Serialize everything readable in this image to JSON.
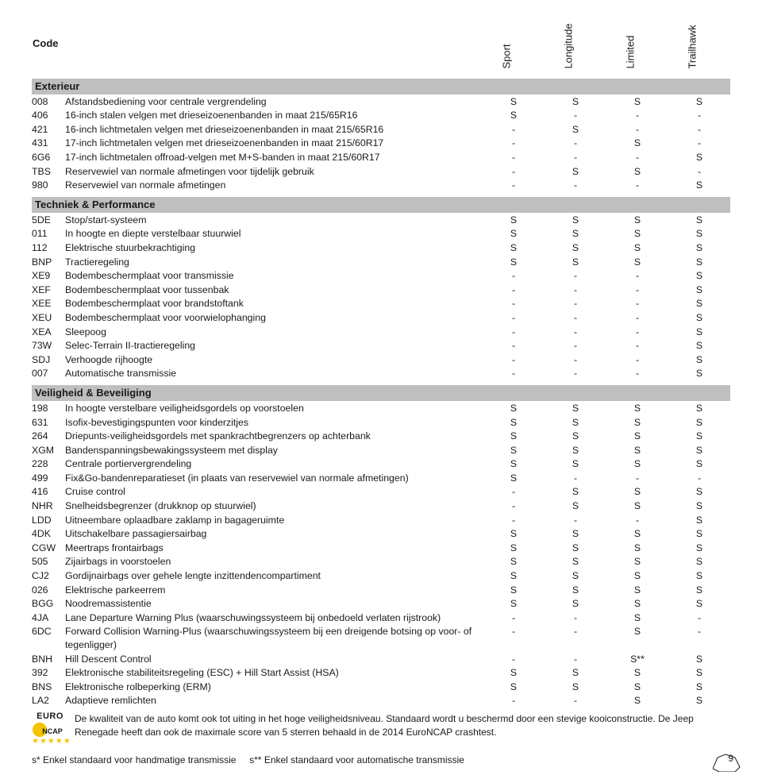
{
  "header": {
    "code_label": "Code",
    "trims": [
      "Sport",
      "Longitude",
      "Limited",
      "Trailhawk"
    ]
  },
  "sections": [
    {
      "title": "Exterieur",
      "rows": [
        {
          "code": "008",
          "desc": "Afstandsbediening voor centrale vergrendeling",
          "v": [
            "S",
            "S",
            "S",
            "S"
          ]
        },
        {
          "code": "406",
          "desc": "16-inch stalen velgen met drieseizoenenbanden in maat 215/65R16",
          "v": [
            "S",
            "-",
            "-",
            "-"
          ]
        },
        {
          "code": "421",
          "desc": "16-inch lichtmetalen velgen met drieseizoenenbanden in maat 215/65R16",
          "v": [
            "-",
            "S",
            "-",
            "-"
          ]
        },
        {
          "code": "431",
          "desc": "17-inch lichtmetalen velgen met drieseizoenenbanden in maat 215/60R17",
          "v": [
            "-",
            "-",
            "S",
            "-"
          ]
        },
        {
          "code": "6G6",
          "desc": "17-inch lichtmetalen offroad-velgen met M+S-banden in maat 215/60R17",
          "v": [
            "-",
            "-",
            "-",
            "S"
          ]
        },
        {
          "code": "TBS",
          "desc": "Reservewiel van normale afmetingen voor tijdelijk gebruik",
          "v": [
            "-",
            "S",
            "S",
            "-"
          ]
        },
        {
          "code": "980",
          "desc": "Reservewiel van normale afmetingen",
          "v": [
            "-",
            "-",
            "-",
            "S"
          ]
        }
      ]
    },
    {
      "title": "Techniek & Performance",
      "rows": [
        {
          "code": "5DE",
          "desc": "Stop/start-systeem",
          "v": [
            "S",
            "S",
            "S",
            "S"
          ]
        },
        {
          "code": "011",
          "desc": "In hoogte en diepte verstelbaar stuurwiel",
          "v": [
            "S",
            "S",
            "S",
            "S"
          ]
        },
        {
          "code": "112",
          "desc": "Elektrische stuurbekrachtiging",
          "v": [
            "S",
            "S",
            "S",
            "S"
          ]
        },
        {
          "code": "BNP",
          "desc": "Tractieregeling",
          "v": [
            "S",
            "S",
            "S",
            "S"
          ]
        },
        {
          "code": "XE9",
          "desc": "Bodembeschermplaat voor transmissie",
          "v": [
            "-",
            "-",
            "-",
            "S"
          ]
        },
        {
          "code": "XEF",
          "desc": "Bodembeschermplaat voor tussenbak",
          "v": [
            "-",
            "-",
            "-",
            "S"
          ]
        },
        {
          "code": "XEE",
          "desc": "Bodembeschermplaat voor brandstoftank",
          "v": [
            "-",
            "-",
            "-",
            "S"
          ]
        },
        {
          "code": "XEU",
          "desc": "Bodembeschermplaat voor voorwielophanging",
          "v": [
            "-",
            "-",
            "-",
            "S"
          ]
        },
        {
          "code": "XEA",
          "desc": "Sleepoog",
          "v": [
            "-",
            "-",
            "-",
            "S"
          ]
        },
        {
          "code": "73W",
          "desc": "Selec-Terrain II-tractieregeling",
          "v": [
            "-",
            "-",
            "-",
            "S"
          ]
        },
        {
          "code": "SDJ",
          "desc": "Verhoogde rijhoogte",
          "v": [
            "-",
            "-",
            "-",
            "S"
          ]
        },
        {
          "code": "007",
          "desc": "Automatische transmissie",
          "v": [
            "-",
            "-",
            "-",
            "S"
          ]
        }
      ]
    },
    {
      "title": "Veiligheid & Beveiliging",
      "rows": [
        {
          "code": "198",
          "desc": "In hoogte verstelbare veiligheidsgordels op voorstoelen",
          "v": [
            "S",
            "S",
            "S",
            "S"
          ]
        },
        {
          "code": "631",
          "desc": "Isofix-bevestigingspunten voor kinderzitjes",
          "v": [
            "S",
            "S",
            "S",
            "S"
          ]
        },
        {
          "code": "264",
          "desc": "Driepunts-veiligheidsgordels met spankrachtbegrenzers op achterbank",
          "v": [
            "S",
            "S",
            "S",
            "S"
          ]
        },
        {
          "code": "XGM",
          "desc": "Bandenspanningsbewakingssysteem met display",
          "v": [
            "S",
            "S",
            "S",
            "S"
          ]
        },
        {
          "code": "228",
          "desc": "Centrale portiervergrendeling",
          "v": [
            "S",
            "S",
            "S",
            "S"
          ]
        },
        {
          "code": "499",
          "desc": "Fix&Go-bandenreparatieset (in plaats van reservewiel van normale afmetingen)",
          "v": [
            "S",
            "-",
            "-",
            "-"
          ]
        },
        {
          "code": "416",
          "desc": "Cruise control",
          "v": [
            "-",
            "S",
            "S",
            "S"
          ]
        },
        {
          "code": "NHR",
          "desc": "Snelheidsbegrenzer (drukknop op stuurwiel)",
          "v": [
            "-",
            "S",
            "S",
            "S"
          ]
        },
        {
          "code": "LDD",
          "desc": "Uitneembare oplaadbare zaklamp in bagageruimte",
          "v": [
            "-",
            "-",
            "-",
            "S"
          ]
        },
        {
          "code": "4DK",
          "desc": "Uitschakelbare passagiersairbag",
          "v": [
            "S",
            "S",
            "S",
            "S"
          ]
        },
        {
          "code": "CGW",
          "desc": "Meertraps frontairbags",
          "v": [
            "S",
            "S",
            "S",
            "S"
          ]
        },
        {
          "code": "505",
          "desc": "Zijairbags in voorstoelen",
          "v": [
            "S",
            "S",
            "S",
            "S"
          ]
        },
        {
          "code": "CJ2",
          "desc": "Gordijnairbags over gehele lengte inzittendencompartiment",
          "v": [
            "S",
            "S",
            "S",
            "S"
          ]
        },
        {
          "code": "026",
          "desc": "Elektrische parkeerrem",
          "v": [
            "S",
            "S",
            "S",
            "S"
          ]
        },
        {
          "code": "BGG",
          "desc": "Noodremassistentie",
          "v": [
            "S",
            "S",
            "S",
            "S"
          ]
        },
        {
          "code": "4JA",
          "desc": "Lane Departure Warning Plus (waarschuwingssysteem bij onbedoeld verlaten rijstrook)",
          "v": [
            "-",
            "-",
            "S",
            "-"
          ]
        },
        {
          "code": "6DC",
          "desc": "Forward Collision Warning-Plus (waarschuwingssysteem bij een dreigende botsing op voor- of tegenligger)",
          "v": [
            "-",
            "-",
            "S",
            "-"
          ]
        },
        {
          "code": "BNH",
          "desc": "Hill Descent Control",
          "v": [
            "-",
            "-",
            "S**",
            "S"
          ]
        },
        {
          "code": "392",
          "desc": "Elektronische stabiliteitsregeling (ESC) + Hill Start Assist (HSA)",
          "v": [
            "S",
            "S",
            "S",
            "S"
          ]
        },
        {
          "code": "BNS",
          "desc": "Elektronische rolbeperking (ERM)",
          "v": [
            "S",
            "S",
            "S",
            "S"
          ]
        },
        {
          "code": "LA2",
          "desc": "Adaptieve remlichten",
          "v": [
            "-",
            "-",
            "S",
            "S"
          ]
        }
      ]
    }
  ],
  "ncap": {
    "euro": "EURO",
    "ncap": "NCAP",
    "desc": "De kwaliteit van de auto komt ook tot uiting in het hoge veiligheidsniveau. Standaard wordt u beschermd door een stevige kooiconstructie. De Jeep Renegade heeft dan ook de maximale score van 5 sterren behaald in de 2014 EuroNCAP crashtest."
  },
  "legend": {
    "s1": "s* Enkel standaard voor handmatige transmissie",
    "s2": "s** Enkel standaard voor automatische transmissie"
  },
  "page_number": "9",
  "colors": {
    "section_bg": "#bfbfbf",
    "text": "#1a1a1a",
    "stars": "#f6c300"
  }
}
